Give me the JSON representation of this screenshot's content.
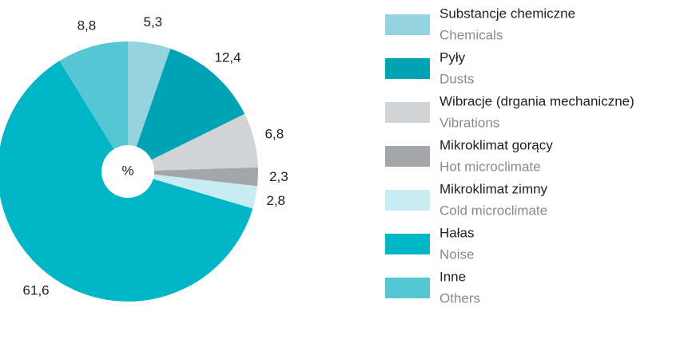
{
  "chart_data": {
    "type": "pie",
    "center_label": "%",
    "categories": [
      "Substancje chemiczne",
      "Pyły",
      "Wibracje (drgania mechaniczne)",
      "Mikroklimat gorący",
      "Mikroklimat zimny",
      "Hałas",
      "Inne"
    ],
    "categories_en": [
      "Chemicals",
      "Dusts",
      "Vibrations",
      "Hot microclimate",
      "Cold microclimate",
      "Noise",
      "Others"
    ],
    "values": [
      5.3,
      12.4,
      6.8,
      2.3,
      2.8,
      61.6,
      8.8
    ],
    "value_labels": [
      "5,3",
      "12,4",
      "6,8",
      "2,3",
      "2,8",
      "61,6",
      "8,8"
    ],
    "colors": [
      "#94d3e0",
      "#00a3b4",
      "#d2d3d5",
      "#a3a5a8",
      "#c9ebf2",
      "#00b5c6",
      "#55c6d3"
    ]
  }
}
